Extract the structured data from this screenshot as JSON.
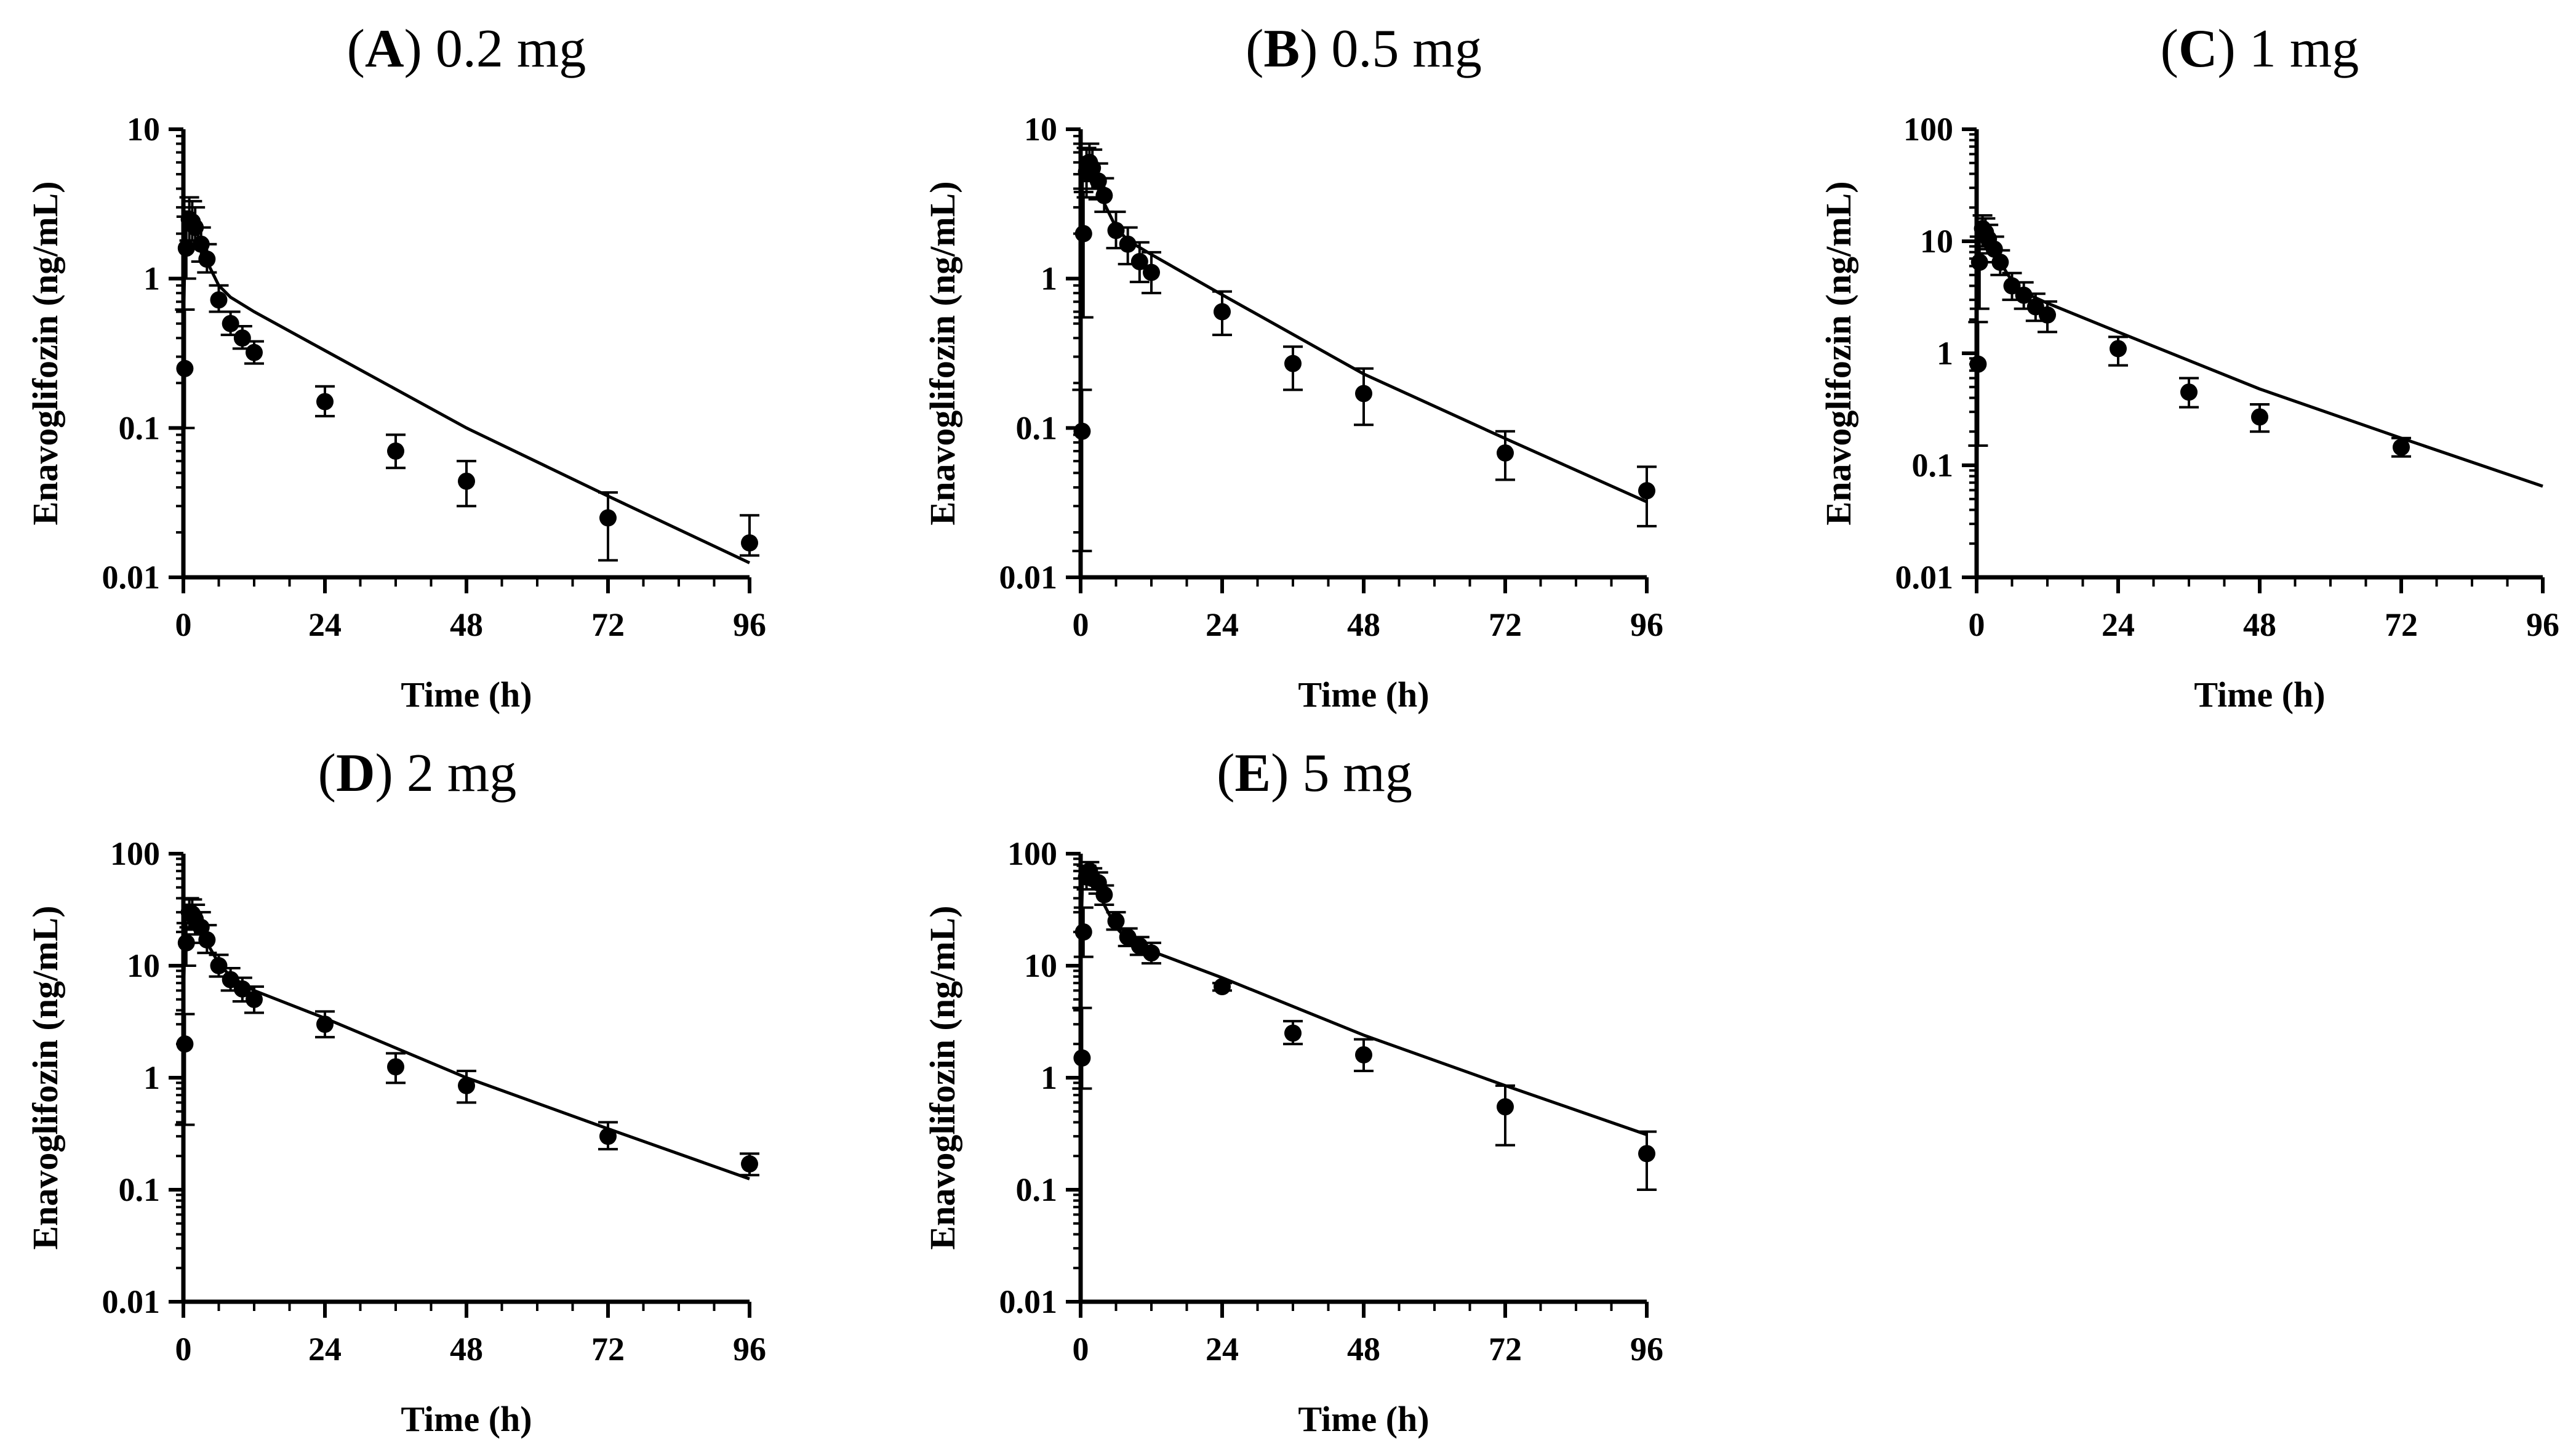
{
  "figure": {
    "colors": {
      "ink": "#000000",
      "background": "#ffffff"
    }
  },
  "chart_data": [
    {
      "id": "A",
      "type": "scatter",
      "title": {
        "letter": "A",
        "text": "0.2 mg"
      },
      "xlabel": "Time (h)",
      "ylabel": "Enavoglifozin (ng/mL)",
      "xlim": [
        0,
        96
      ],
      "xticks": [
        "0",
        "24",
        "48",
        "72",
        "96"
      ],
      "ylim": [
        0.01,
        10
      ],
      "yticks": [
        "0.01",
        "0.1",
        "1",
        "10"
      ],
      "observed": [
        {
          "t": 0.25,
          "y": 0.25,
          "lo": 0.1,
          "hi": 0.62
        },
        {
          "t": 0.5,
          "y": 1.6,
          "lo": 1.0,
          "hi": 2.6
        },
        {
          "t": 1,
          "y": 2.5,
          "lo": 1.8,
          "hi": 3.5
        },
        {
          "t": 1.5,
          "y": 2.4,
          "lo": 1.8,
          "hi": 3.3
        },
        {
          "t": 2,
          "y": 2.2,
          "lo": 1.7,
          "hi": 3.0
        },
        {
          "t": 3,
          "y": 1.7,
          "lo": 1.3,
          "hi": 2.2
        },
        {
          "t": 4,
          "y": 1.35,
          "lo": 1.1,
          "hi": 1.7
        },
        {
          "t": 6,
          "y": 0.72,
          "lo": 0.6,
          "hi": 0.9
        },
        {
          "t": 8,
          "y": 0.5,
          "lo": 0.42,
          "hi": 0.6
        },
        {
          "t": 10,
          "y": 0.4,
          "lo": 0.34,
          "hi": 0.48
        },
        {
          "t": 12,
          "y": 0.32,
          "lo": 0.27,
          "hi": 0.38
        },
        {
          "t": 24,
          "y": 0.15,
          "lo": 0.12,
          "hi": 0.19
        },
        {
          "t": 36,
          "y": 0.07,
          "lo": 0.054,
          "hi": 0.09
        },
        {
          "t": 48,
          "y": 0.044,
          "lo": 0.03,
          "hi": 0.06
        },
        {
          "t": 72,
          "y": 0.025,
          "lo": 0.013,
          "hi": 0.037
        },
        {
          "t": 96,
          "y": 0.017,
          "lo": 0.014,
          "hi": 0.026
        }
      ],
      "predicted": [
        {
          "t": 0,
          "y": 0.0
        },
        {
          "t": 0.1,
          "y": 0.7
        },
        {
          "t": 0.3,
          "y": 2.0
        },
        {
          "t": 0.6,
          "y": 2.8
        },
        {
          "t": 1,
          "y": 2.8
        },
        {
          "t": 2,
          "y": 2.2
        },
        {
          "t": 4,
          "y": 1.3
        },
        {
          "t": 6,
          "y": 0.9
        },
        {
          "t": 8,
          "y": 0.75
        },
        {
          "t": 12,
          "y": 0.6
        },
        {
          "t": 24,
          "y": 0.33
        },
        {
          "t": 48,
          "y": 0.1
        },
        {
          "t": 72,
          "y": 0.035
        },
        {
          "t": 96,
          "y": 0.0125
        }
      ]
    },
    {
      "id": "B",
      "type": "scatter",
      "title": {
        "letter": "B",
        "text": "0.5 mg"
      },
      "xlabel": "Time (h)",
      "ylabel": "Enavoglifozin (ng/mL)",
      "xlim": [
        0,
        96
      ],
      "xticks": [
        "0",
        "24",
        "48",
        "72",
        "96"
      ],
      "ylim": [
        0.01,
        10
      ],
      "yticks": [
        "0.01",
        "0.1",
        "1",
        "10"
      ],
      "observed": [
        {
          "t": 0.25,
          "y": 0.095,
          "lo": 0.015,
          "hi": 0.18
        },
        {
          "t": 0.5,
          "y": 2.0,
          "lo": 0.55,
          "hi": 3.8
        },
        {
          "t": 1,
          "y": 5.2,
          "lo": 3.5,
          "hi": 7.5
        },
        {
          "t": 1.5,
          "y": 6.0,
          "lo": 4.5,
          "hi": 8.0
        },
        {
          "t": 2,
          "y": 5.5,
          "lo": 4.0,
          "hi": 7.3
        },
        {
          "t": 3,
          "y": 4.5,
          "lo": 3.4,
          "hi": 5.9
        },
        {
          "t": 4,
          "y": 3.6,
          "lo": 2.8,
          "hi": 4.7
        },
        {
          "t": 6,
          "y": 2.1,
          "lo": 1.6,
          "hi": 2.8
        },
        {
          "t": 8,
          "y": 1.7,
          "lo": 1.25,
          "hi": 2.2
        },
        {
          "t": 10,
          "y": 1.3,
          "lo": 0.95,
          "hi": 1.75
        },
        {
          "t": 12,
          "y": 1.1,
          "lo": 0.8,
          "hi": 1.5
        },
        {
          "t": 24,
          "y": 0.6,
          "lo": 0.42,
          "hi": 0.82
        },
        {
          "t": 36,
          "y": 0.27,
          "lo": 0.18,
          "hi": 0.35
        },
        {
          "t": 48,
          "y": 0.17,
          "lo": 0.105,
          "hi": 0.25
        },
        {
          "t": 72,
          "y": 0.068,
          "lo": 0.045,
          "hi": 0.095
        },
        {
          "t": 96,
          "y": 0.038,
          "lo": 0.022,
          "hi": 0.055
        }
      ],
      "predicted": [
        {
          "t": 0,
          "y": 0.0
        },
        {
          "t": 0.1,
          "y": 1.5
        },
        {
          "t": 0.3,
          "y": 4.5
        },
        {
          "t": 0.6,
          "y": 6.5
        },
        {
          "t": 1,
          "y": 6.6
        },
        {
          "t": 2,
          "y": 5.2
        },
        {
          "t": 4,
          "y": 3.2
        },
        {
          "t": 6,
          "y": 2.2
        },
        {
          "t": 8,
          "y": 1.8
        },
        {
          "t": 12,
          "y": 1.45
        },
        {
          "t": 24,
          "y": 0.78
        },
        {
          "t": 48,
          "y": 0.23
        },
        {
          "t": 72,
          "y": 0.085
        },
        {
          "t": 96,
          "y": 0.032
        }
      ]
    },
    {
      "id": "C",
      "type": "scatter",
      "title": {
        "letter": "C",
        "text": "1 mg"
      },
      "xlabel": "Time (h)",
      "ylabel": "Enavoglifozin (ng/mL)",
      "xlim": [
        0,
        96
      ],
      "xticks": [
        "0",
        "24",
        "48",
        "72",
        "96"
      ],
      "ylim": [
        0.01,
        100
      ],
      "yticks": [
        "0.01",
        "0.1",
        "1",
        "10",
        "100"
      ],
      "observed": [
        {
          "t": 0.25,
          "y": 0.8,
          "lo": 0.15,
          "hi": 1.9
        },
        {
          "t": 0.5,
          "y": 6.5,
          "lo": 2.5,
          "hi": 11
        },
        {
          "t": 1,
          "y": 13,
          "lo": 9,
          "hi": 17
        },
        {
          "t": 1.5,
          "y": 12,
          "lo": 8.5,
          "hi": 16
        },
        {
          "t": 2,
          "y": 10.5,
          "lo": 7.8,
          "hi": 14
        },
        {
          "t": 3,
          "y": 8.5,
          "lo": 6.5,
          "hi": 11
        },
        {
          "t": 4,
          "y": 6.5,
          "lo": 5.0,
          "hi": 8.3
        },
        {
          "t": 6,
          "y": 4.0,
          "lo": 3.0,
          "hi": 5.2
        },
        {
          "t": 8,
          "y": 3.3,
          "lo": 2.5,
          "hi": 4.3
        },
        {
          "t": 10,
          "y": 2.6,
          "lo": 1.95,
          "hi": 3.4
        },
        {
          "t": 12,
          "y": 2.2,
          "lo": 1.55,
          "hi": 2.9
        },
        {
          "t": 24,
          "y": 1.1,
          "lo": 0.78,
          "hi": 1.4
        },
        {
          "t": 36,
          "y": 0.45,
          "lo": 0.33,
          "hi": 0.6
        },
        {
          "t": 48,
          "y": 0.27,
          "lo": 0.2,
          "hi": 0.35
        },
        {
          "t": 72,
          "y": 0.145,
          "lo": 0.12,
          "hi": 0.175
        }
      ],
      "predicted": [
        {
          "t": 0,
          "y": 0.0
        },
        {
          "t": 0.1,
          "y": 3.0
        },
        {
          "t": 0.3,
          "y": 9.0
        },
        {
          "t": 0.6,
          "y": 13.5
        },
        {
          "t": 1,
          "y": 13.5
        },
        {
          "t": 2,
          "y": 10.5
        },
        {
          "t": 4,
          "y": 6.5
        },
        {
          "t": 6,
          "y": 4.4
        },
        {
          "t": 8,
          "y": 3.5
        },
        {
          "t": 12,
          "y": 2.8
        },
        {
          "t": 24,
          "y": 1.55
        },
        {
          "t": 48,
          "y": 0.48
        },
        {
          "t": 72,
          "y": 0.175
        },
        {
          "t": 96,
          "y": 0.065
        }
      ]
    },
    {
      "id": "D",
      "type": "scatter",
      "title": {
        "letter": "D",
        "text": "2 mg"
      },
      "xlabel": "Time (h)",
      "ylabel": "Enavoglifozin (ng/mL)",
      "xlim": [
        0,
        96
      ],
      "xticks": [
        "0",
        "24",
        "48",
        "72",
        "96"
      ],
      "ylim": [
        0.01,
        100
      ],
      "yticks": [
        "0.01",
        "0.1",
        "1",
        "10",
        "100"
      ],
      "observed": [
        {
          "t": 0.25,
          "y": 2.0,
          "lo": 0.38,
          "hi": 3.7
        },
        {
          "t": 0.5,
          "y": 16,
          "lo": 10,
          "hi": 24
        },
        {
          "t": 1,
          "y": 30,
          "lo": 22,
          "hi": 40
        },
        {
          "t": 1.5,
          "y": 29,
          "lo": 21,
          "hi": 39
        },
        {
          "t": 2,
          "y": 26,
          "lo": 19,
          "hi": 35
        },
        {
          "t": 3,
          "y": 22,
          "lo": 16,
          "hi": 30
        },
        {
          "t": 4,
          "y": 17,
          "lo": 13,
          "hi": 23
        },
        {
          "t": 6,
          "y": 10,
          "lo": 8,
          "hi": 12.5
        },
        {
          "t": 8,
          "y": 7.5,
          "lo": 6,
          "hi": 9.5
        },
        {
          "t": 10,
          "y": 6.2,
          "lo": 4.8,
          "hi": 7.8
        },
        {
          "t": 12,
          "y": 5.0,
          "lo": 3.8,
          "hi": 6.5
        },
        {
          "t": 24,
          "y": 3.0,
          "lo": 2.3,
          "hi": 3.9
        },
        {
          "t": 36,
          "y": 1.25,
          "lo": 0.9,
          "hi": 1.65
        },
        {
          "t": 48,
          "y": 0.85,
          "lo": 0.6,
          "hi": 1.15
        },
        {
          "t": 72,
          "y": 0.3,
          "lo": 0.23,
          "hi": 0.4
        },
        {
          "t": 96,
          "y": 0.17,
          "lo": 0.135,
          "hi": 0.21
        }
      ],
      "predicted": [
        {
          "t": 0,
          "y": 0.0
        },
        {
          "t": 0.1,
          "y": 8
        },
        {
          "t": 0.3,
          "y": 24
        },
        {
          "t": 0.6,
          "y": 34
        },
        {
          "t": 1,
          "y": 34
        },
        {
          "t": 2,
          "y": 26
        },
        {
          "t": 4,
          "y": 16
        },
        {
          "t": 6,
          "y": 10.5
        },
        {
          "t": 8,
          "y": 8
        },
        {
          "t": 12,
          "y": 6
        },
        {
          "t": 24,
          "y": 3.4
        },
        {
          "t": 48,
          "y": 1.0
        },
        {
          "t": 72,
          "y": 0.35
        },
        {
          "t": 96,
          "y": 0.125
        }
      ]
    },
    {
      "id": "E",
      "type": "scatter",
      "title": {
        "letter": "E",
        "text": "5 mg"
      },
      "xlabel": "Time (h)",
      "ylabel": "Enavoglifozin (ng/mL)",
      "xlim": [
        0,
        96
      ],
      "xticks": [
        "0",
        "24",
        "48",
        "72",
        "96"
      ],
      "ylim": [
        0.01,
        100
      ],
      "yticks": [
        "0.01",
        "0.1",
        "1",
        "10",
        "100"
      ],
      "observed": [
        {
          "t": 0.25,
          "y": 1.5,
          "lo": 0.8,
          "hi": 4.2
        },
        {
          "t": 0.5,
          "y": 20,
          "lo": 12,
          "hi": 33
        },
        {
          "t": 1,
          "y": 62,
          "lo": 48,
          "hi": 78
        },
        {
          "t": 1.5,
          "y": 70,
          "lo": 56,
          "hi": 84
        },
        {
          "t": 2,
          "y": 60,
          "lo": 48,
          "hi": 74
        },
        {
          "t": 3,
          "y": 55,
          "lo": 44,
          "hi": 68
        },
        {
          "t": 4,
          "y": 43,
          "lo": 35,
          "hi": 52
        },
        {
          "t": 6,
          "y": 25,
          "lo": 21,
          "hi": 30
        },
        {
          "t": 8,
          "y": 18,
          "lo": 15,
          "hi": 21.5
        },
        {
          "t": 10,
          "y": 15,
          "lo": 12.5,
          "hi": 18
        },
        {
          "t": 12,
          "y": 13,
          "lo": 10.5,
          "hi": 16
        },
        {
          "t": 24,
          "y": 6.5,
          "lo": 6.0,
          "hi": 7.0
        },
        {
          "t": 36,
          "y": 2.5,
          "lo": 2.0,
          "hi": 3.2
        },
        {
          "t": 48,
          "y": 1.6,
          "lo": 1.15,
          "hi": 2.2
        },
        {
          "t": 72,
          "y": 0.55,
          "lo": 0.25,
          "hi": 0.85
        },
        {
          "t": 96,
          "y": 0.21,
          "lo": 0.1,
          "hi": 0.33
        }
      ],
      "predicted": [
        {
          "t": 0,
          "y": 0.0
        },
        {
          "t": 0.1,
          "y": 20
        },
        {
          "t": 0.3,
          "y": 55
        },
        {
          "t": 0.6,
          "y": 75
        },
        {
          "t": 1,
          "y": 75
        },
        {
          "t": 2,
          "y": 60
        },
        {
          "t": 4,
          "y": 35
        },
        {
          "t": 6,
          "y": 22
        },
        {
          "t": 8,
          "y": 17
        },
        {
          "t": 12,
          "y": 13.5
        },
        {
          "t": 24,
          "y": 7.8
        },
        {
          "t": 48,
          "y": 2.4
        },
        {
          "t": 72,
          "y": 0.85
        },
        {
          "t": 96,
          "y": 0.31
        }
      ]
    }
  ]
}
